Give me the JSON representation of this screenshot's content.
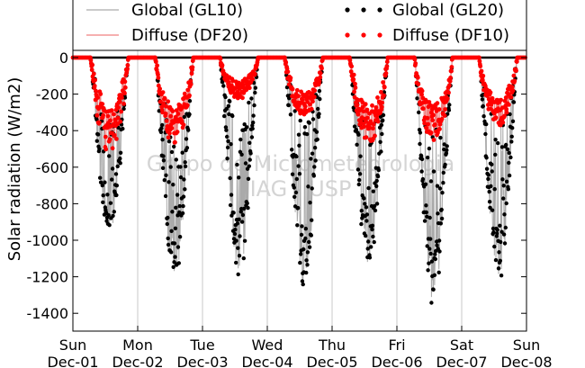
{
  "chart_data": {
    "type": "scatter",
    "title": "",
    "xlabel": "",
    "ylabel": "Solar radiation (W/m2)",
    "ylim": [
      -1500,
      0
    ],
    "yticks": [
      0,
      -200,
      -400,
      -600,
      -800,
      -1000,
      -1200,
      -1400
    ],
    "xlim": [
      "2012-12-01",
      "2012-12-08"
    ],
    "xticks": [
      {
        "day": "Sun",
        "date": "Dec-01"
      },
      {
        "day": "Mon",
        "date": "Dec-02"
      },
      {
        "day": "Tue",
        "date": "Dec-03"
      },
      {
        "day": "Wed",
        "date": "Dec-04"
      },
      {
        "day": "Thu",
        "date": "Dec-05"
      },
      {
        "day": "Fri",
        "date": "Dec-06"
      },
      {
        "day": "Sat",
        "date": "Dec-07"
      },
      {
        "day": "Sun",
        "date": "Dec-08"
      }
    ],
    "grid": "vertical",
    "legend_position": "top",
    "watermark": [
      "Grupo de Micrometeorologia",
      "IAG - USP"
    ],
    "series": [
      {
        "name": "Global (GL10)",
        "style": "line",
        "color": "#aaaaaa"
      },
      {
        "name": "Diffuse (DF20)",
        "style": "line",
        "color": "#f08080"
      },
      {
        "name": "Global (GL20)",
        "style": "points",
        "color": "#000000"
      },
      {
        "name": "Diffuse (DF10)",
        "style": "points",
        "color": "#ff0000"
      }
    ],
    "daily_peaks": [
      {
        "day": "2012-12-01",
        "global_min": -950,
        "diffuse_min": -520
      },
      {
        "day": "2012-12-02",
        "global_min": -1170,
        "diffuse_min": -480
      },
      {
        "day": "2012-12-03",
        "global_min": -1120,
        "diffuse_min": -230
      },
      {
        "day": "2012-12-04",
        "global_min": -1180,
        "diffuse_min": -340
      },
      {
        "day": "2012-12-05",
        "global_min": -1080,
        "diffuse_min": -470
      },
      {
        "day": "2012-12-06",
        "global_min": -1280,
        "diffuse_min": -460
      },
      {
        "day": "2012-12-07",
        "global_min": -1180,
        "diffuse_min": -380
      }
    ]
  }
}
